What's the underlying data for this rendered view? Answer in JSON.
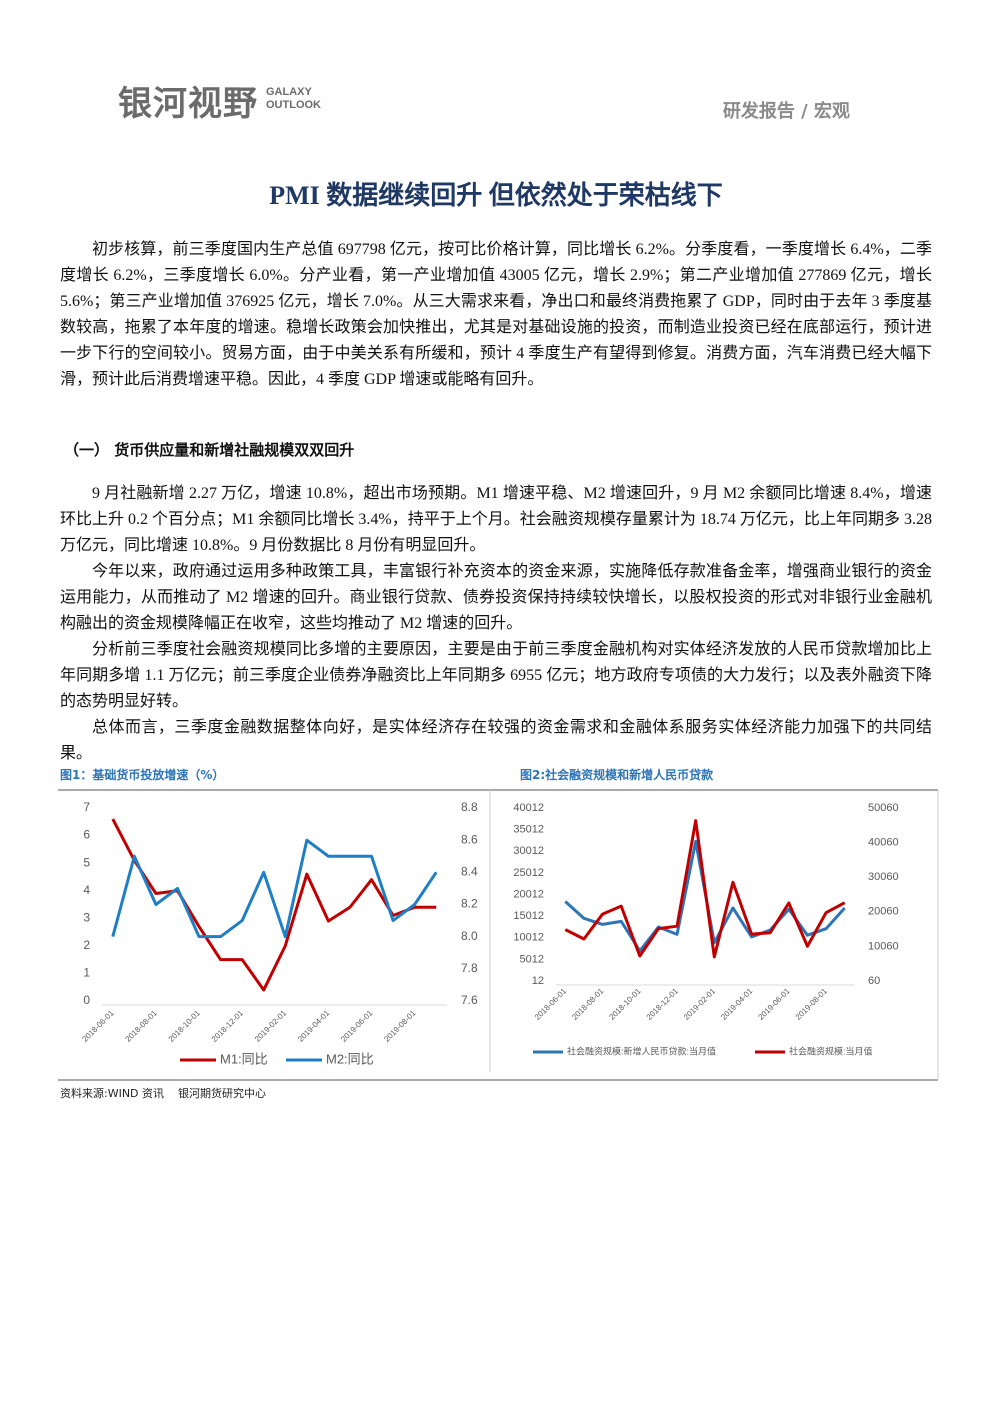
{
  "header": {
    "logo": "银河视野",
    "logo_en": [
      "GALAXY",
      "OUTLOOK"
    ],
    "section": "研发报告 / 宏观"
  },
  "title": "PMI 数据继续回升 但依然处于荣枯线下",
  "intro": "初步核算，前三季度国内生产总值 697798 亿元，按可比价格计算，同比增长 6.2%。分季度看，一季度增长 6.4%，二季度增长 6.2%，三季度增长 6.0%。分产业看，第一产业增加值 43005 亿元，增长 2.9%；第二产业增加值 277869 亿元，增长 5.6%；第三产业增加值 376925 亿元，增长 7.0%。从三大需求来看，净出口和最终消费拖累了 GDP，同时由于去年 3 季度基数较高，拖累了本年度的增速。稳增长政策会加快推出，尤其是对基础设施的投资，而制造业投资已经在底部运行，预计进一步下行的空间较小。贸易方面，由于中美关系有所缓和，预计 4 季度生产有望得到修复。消费方面，汽车消费已经大幅下滑，预计此后消费增速平稳。因此，4 季度 GDP 增速或能略有回升。",
  "section": {
    "heading": "（一） 货币供应量和新增社融规模双双回升",
    "paragraphs": [
      "9 月社融新增 2.27 万亿，增速 10.8%，超出市场预期。M1 增速平稳、M2 增速回升，9 月 M2 余额同比增速 8.4%，增速环比上升 0.2 个百分点；M1 余额同比增长 3.4%，持平于上个月。社会融资规模存量累计为 18.74 万亿元，比上年同期多 3.28 万亿元，同比增速 10.8%。9 月份数据比 8 月份有明显回升。",
      "今年以来，政府通过运用多种政策工具，丰富银行补充资本的资金来源，实施降低存款准备金率，增强商业银行的资金运用能力，从而推动了 M2 增速的回升。商业银行贷款、债券投资保持持续较快增长，以股权投资的形式对非银行业金融机构融出的资金规模降幅正在收窄，这些均推动了 M2 增速的回升。",
      "分析前三季度社会融资规模同比多增的主要原因，主要是由于前三季度金融机构对实体经济发放的人民币贷款增加比上年同期多增 1.1 万亿元；前三季度企业债券净融资比上年同期多 6955 亿元；地方政府专项债的大力发行；以及表外融资下降的态势明显好转。",
      "总体而言，三季度金融数据整体向好，是实体经济存在较强的资金需求和金融体系服务实体经济能力加强下的共同结果。"
    ]
  },
  "chart_data": [
    {
      "type": "line",
      "title": "图1：基础货币投放增速（%）",
      "categories": [
        "2018-06-01",
        null,
        "2018-08-01",
        null,
        "2018-10-01",
        null,
        "2018-12-01",
        null,
        "2019-02-01",
        null,
        "2019-04-01",
        null,
        "2019-06-01",
        null,
        "2019-08-01",
        null
      ],
      "ylim": [
        0,
        7
      ],
      "yticks": [
        0,
        1,
        2,
        3,
        4,
        5,
        6,
        7
      ],
      "y2lim": [
        7.6,
        8.8
      ],
      "y2ticks": [
        7.6,
        7.8,
        {
          "value": 8,
          "label": "8.0"
        },
        8.2,
        8.4,
        8.6,
        8.8
      ],
      "legend": "bottom",
      "series": [
        {
          "name": "M1:同比",
          "color": "#c00000",
          "values": [
            6.6,
            5.1,
            3.9,
            4.0,
            2.7,
            1.5,
            1.5,
            0.4,
            2.0,
            4.6,
            2.9,
            3.4,
            4.4,
            3.1,
            3.4,
            3.4
          ]
        },
        {
          "name": "M2:同比",
          "color": "#1f7fc4",
          "axis": "y2",
          "values": [
            8.0,
            8.5,
            8.2,
            8.3,
            8.0,
            8.0,
            8.1,
            8.4,
            8.0,
            8.6,
            8.5,
            8.5,
            8.5,
            8.1,
            8.2,
            8.4
          ]
        }
      ]
    },
    {
      "type": "line",
      "title": "图2:社会融资规模和新增人民币贷款",
      "categories": [
        "2018-06-01",
        null,
        "2018-08-01",
        null,
        "2018-10-01",
        null,
        "2018-12-01",
        null,
        "2019-02-01",
        null,
        "2019-04-01",
        null,
        "2019-06-01",
        null,
        "2019-08-01",
        null
      ],
      "ylim": [
        12,
        40012
      ],
      "yticks": [
        12,
        5012,
        10012,
        15012,
        20012,
        25012,
        30012,
        35012,
        40012
      ],
      "y2lim": [
        60,
        50060
      ],
      "y2ticks": [
        60,
        10060,
        20060,
        30060,
        40060,
        50060
      ],
      "legend": "bottom",
      "series": [
        {
          "name": "社会融资规模:新增人民币贷款:当月值",
          "color": "#2e75b6",
          "values": [
            18400,
            14500,
            13100,
            13800,
            6970,
            12500,
            10800,
            32300,
            8858,
            16900,
            10200,
            11800,
            16600,
            10600,
            12100,
            16900
          ]
        },
        {
          "name": "社会融资规模:当月值",
          "color": "#c00000",
          "axis": "y2",
          "values": [
            14900,
            12200,
            19400,
            21700,
            7288,
            15200,
            15898,
            46400,
            7030,
            28600,
            13600,
            14000,
            22600,
            10100,
            19800,
            22700
          ]
        }
      ]
    }
  ],
  "source": "资料来源:WIND 资讯",
  "source_org": "银河期货研究中心"
}
